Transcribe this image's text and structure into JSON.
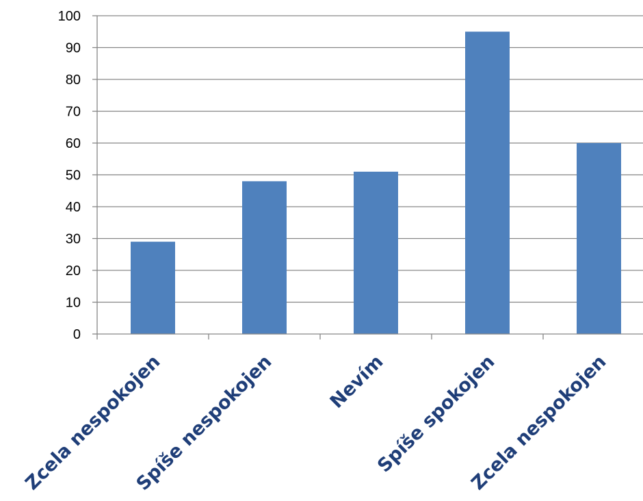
{
  "chart_data": {
    "type": "bar",
    "title": "",
    "xlabel": "",
    "ylabel": "",
    "categories": [
      "Zcela nespokojen",
      "Spíše nespokojen",
      "Nevím",
      "Spíše spokojen",
      "Zcela nespokojen"
    ],
    "values": [
      29,
      48,
      51,
      95,
      60
    ],
    "ylim": [
      0,
      100
    ],
    "ytick_step": 10,
    "yticks": [
      "0",
      "10",
      "20",
      "30",
      "40",
      "50",
      "60",
      "70",
      "80",
      "90",
      "100"
    ],
    "grid": true,
    "legend": "none",
    "colors": {
      "bar": "#4f81bd",
      "grid": "#868686",
      "axis": "#868686",
      "category_text": "#1f3e78",
      "tick_text": "#000000"
    }
  }
}
